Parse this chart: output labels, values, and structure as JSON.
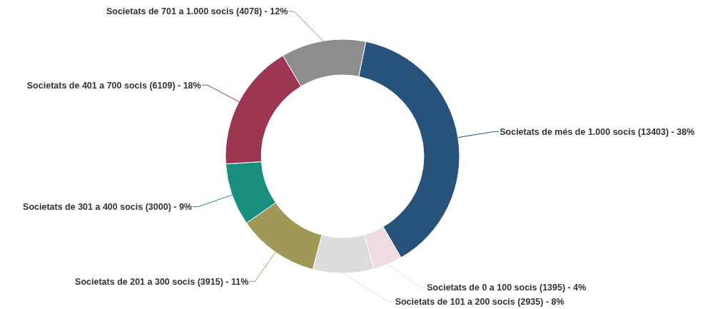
{
  "chart_data": {
    "type": "donut",
    "categories": [
      "Societats de més de 1.000 socis",
      "Societats de 0 a 100 socis",
      "Societats de 101 a 200 socis",
      "Societats de 201 a 300 socis",
      "Societats de 301 a 400 socis",
      "Societats de 401 a 700 socis",
      "Societats de 701 a 1.000 socis"
    ],
    "values": [
      13403,
      1395,
      2935,
      3915,
      3000,
      6109,
      4078
    ],
    "value_labels": [
      "(13403) - 38%",
      "(1395) - 4%",
      "(2935) - 8%",
      "(3915) - 11%",
      "(3000) - 9%",
      "(6109) - 18%",
      "(4078) - 12%"
    ],
    "colors": [
      "#26527b",
      "#efdce1",
      "#dcdcdc",
      "#a09856",
      "#178e7e",
      "#9c3550",
      "#8d8d8d"
    ]
  }
}
